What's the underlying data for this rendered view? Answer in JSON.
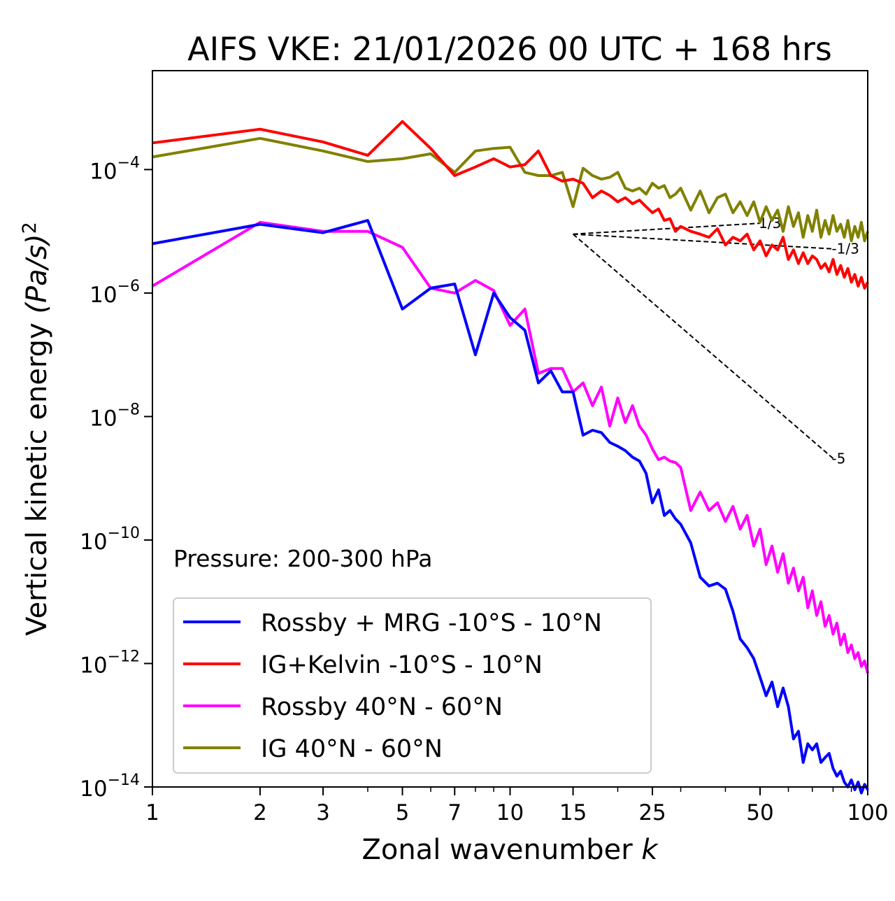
{
  "chart_data": {
    "type": "line",
    "title": "AIFS VKE: 21/01/2026 00 UTC + 168 hrs",
    "xlabel_text": "Zonal wavenumber",
    "xlabel_var": "k",
    "ylabel_text": "Vertical kinetic energy",
    "ylabel_unit": "(Pa/s)",
    "ylabel_power": "2",
    "xscale": "log",
    "yscale": "log",
    "xlim": [
      1,
      100
    ],
    "ylim": [
      1e-14,
      0.004
    ],
    "xticks": [
      1,
      2,
      3,
      5,
      7,
      10,
      15,
      25,
      50,
      100
    ],
    "xtick_labels": [
      "1",
      "2",
      "3",
      "5",
      "7",
      "10",
      "15",
      "25",
      "50",
      "100"
    ],
    "yticks": [
      -4,
      -6,
      -8,
      -10,
      -12,
      -14
    ],
    "ytick_base": "10",
    "ytick_exponents": [
      "−4",
      "−6",
      "−8",
      "−10",
      "−12",
      "−14"
    ],
    "annotation": "Pressure: 200-300 hPa",
    "legend_position": "lower-left",
    "series": [
      {
        "name": "Rossby + MRG -10°S - 10°N",
        "color": "#0000ff",
        "x": [
          1,
          2,
          3,
          4,
          5,
          6,
          7,
          8,
          9,
          10,
          11,
          12,
          13,
          14,
          15,
          16,
          17,
          18,
          19,
          20,
          21,
          22,
          23,
          24,
          25,
          26,
          27,
          28,
          29,
          30,
          32,
          34,
          36,
          38,
          40,
          42,
          44,
          46,
          48,
          50,
          52,
          54,
          56,
          58,
          60,
          62,
          64,
          66,
          68,
          70,
          72,
          74,
          76,
          78,
          80,
          82,
          84,
          86,
          88,
          90,
          92,
          94,
          96,
          98,
          100
        ],
        "y": [
          6.3e-06,
          1.3e-05,
          9.5e-06,
          1.5e-05,
          5.5e-07,
          1.2e-06,
          1.4e-06,
          1e-07,
          1e-06,
          4e-07,
          2.5e-07,
          3.5e-08,
          5.5e-08,
          2.5e-08,
          2.5e-08,
          5e-09,
          6e-09,
          5.5e-09,
          3.8e-09,
          3.3e-09,
          2.8e-09,
          2.2e-09,
          1.9e-09,
          1.2e-09,
          4e-10,
          6.5e-10,
          2.5e-10,
          3e-10,
          2.2e-10,
          1.8e-10,
          9e-11,
          2.5e-11,
          1.8e-11,
          2e-11,
          1.6e-11,
          7e-12,
          2.5e-12,
          1.8e-12,
          1.2e-12,
          6e-13,
          3e-13,
          5e-13,
          2e-13,
          4e-13,
          2e-13,
          6e-14,
          8e-14,
          2.5e-14,
          5e-14,
          4e-14,
          5e-14,
          2.5e-14,
          3e-14,
          3.5e-14,
          2e-14,
          1.5e-14,
          1.8e-14,
          1.2e-14,
          1e-14,
          1.3e-14,
          9e-15,
          1.2e-14,
          8e-15,
          1.1e-14,
          9e-15
        ]
      },
      {
        "name": "IG+Kelvin -10°S - 10°N",
        "color": "#ff0000",
        "x": [
          1,
          2,
          3,
          4,
          5,
          6,
          7,
          8,
          9,
          10,
          11,
          12,
          13,
          14,
          15,
          16,
          17,
          18,
          19,
          20,
          21,
          22,
          23,
          24,
          25,
          26,
          27,
          28,
          29,
          30,
          32,
          34,
          36,
          38,
          40,
          42,
          44,
          46,
          48,
          50,
          52,
          54,
          56,
          58,
          60,
          62,
          64,
          66,
          68,
          70,
          72,
          74,
          76,
          78,
          80,
          82,
          84,
          86,
          88,
          90,
          92,
          94,
          96,
          98,
          100
        ],
        "y": [
          0.00027,
          0.00045,
          0.00028,
          0.00017,
          0.0006,
          0.00022,
          8e-05,
          0.00011,
          0.00015,
          0.00011,
          0.00012,
          0.0002,
          8e-05,
          6.5e-05,
          7e-05,
          6e-05,
          3.5e-05,
          4.5e-05,
          3.8e-05,
          3e-05,
          3.5e-05,
          2.8e-05,
          3.2e-05,
          2.5e-05,
          2e-05,
          2.3e-05,
          1.5e-05,
          1.6e-05,
          1e-05,
          1.2e-05,
          1e-05,
          9e-06,
          8e-06,
          1.1e-05,
          6e-06,
          8e-06,
          7e-06,
          9e-06,
          5e-06,
          7e-06,
          4e-06,
          6e-06,
          5e-06,
          8e-06,
          3.5e-06,
          5e-06,
          3e-06,
          4.5e-06,
          3e-06,
          4e-06,
          3.5e-06,
          2.5e-06,
          3e-06,
          2.2e-06,
          3.5e-06,
          2e-06,
          2.8e-06,
          1.8e-06,
          2.5e-06,
          1.5e-06,
          2e-06,
          1.3e-06,
          1.8e-06,
          1.2e-06,
          1.5e-06
        ]
      },
      {
        "name": "Rossby 40°N - 60°N",
        "color": "#ff00ff",
        "x": [
          1,
          2,
          3,
          4,
          5,
          6,
          7,
          8,
          9,
          10,
          11,
          12,
          13,
          14,
          15,
          16,
          17,
          18,
          19,
          20,
          21,
          22,
          23,
          24,
          25,
          26,
          27,
          28,
          29,
          30,
          32,
          34,
          36,
          38,
          40,
          42,
          44,
          46,
          48,
          50,
          52,
          54,
          56,
          58,
          60,
          62,
          64,
          66,
          68,
          70,
          72,
          74,
          76,
          78,
          80,
          82,
          84,
          86,
          88,
          90,
          92,
          94,
          96,
          98,
          100
        ],
        "y": [
          1.3e-06,
          1.4e-05,
          1e-05,
          1e-05,
          5.5e-06,
          1.2e-06,
          1e-06,
          1.6e-06,
          1.1e-06,
          3e-07,
          5.5e-07,
          5e-08,
          6e-08,
          6e-08,
          2.5e-08,
          3.5e-08,
          1.5e-08,
          3e-08,
          7e-09,
          2e-08,
          8e-09,
          1.5e-08,
          7e-09,
          5e-09,
          3e-09,
          2e-09,
          2.2e-09,
          1.9e-09,
          1.8e-09,
          1.5e-09,
          3e-10,
          6e-10,
          3e-10,
          4e-10,
          2e-10,
          3.5e-10,
          1.5e-10,
          2.5e-10,
          8e-11,
          1.5e-10,
          4e-11,
          8e-11,
          3e-11,
          6e-11,
          2e-11,
          3.5e-11,
          1.5e-11,
          2.5e-11,
          8e-12,
          1.5e-11,
          6e-12,
          1e-11,
          4e-12,
          6e-12,
          3e-12,
          4.5e-12,
          2e-12,
          3e-12,
          1.5e-12,
          2e-12,
          1.2e-12,
          1.5e-12,
          9e-13,
          1.1e-12,
          7e-13
        ]
      },
      {
        "name": "IG 40°N - 60°N",
        "color": "#808000",
        "x": [
          1,
          2,
          3,
          4,
          5,
          6,
          7,
          8,
          9,
          10,
          11,
          12,
          13,
          14,
          15,
          16,
          17,
          18,
          19,
          20,
          21,
          22,
          23,
          24,
          25,
          26,
          27,
          28,
          29,
          30,
          32,
          34,
          36,
          38,
          40,
          42,
          44,
          46,
          48,
          50,
          52,
          54,
          56,
          58,
          60,
          62,
          64,
          66,
          68,
          70,
          72,
          74,
          76,
          78,
          80,
          82,
          84,
          86,
          88,
          90,
          92,
          94,
          96,
          98,
          100
        ],
        "y": [
          0.00016,
          0.00032,
          0.0002,
          0.000135,
          0.00015,
          0.00018,
          9e-05,
          0.0002,
          0.00022,
          0.00023,
          9e-05,
          8e-05,
          8e-05,
          9e-05,
          2.5e-05,
          0.000105,
          8e-05,
          7e-05,
          7.5e-05,
          9e-05,
          5e-05,
          4.5e-05,
          5e-05,
          4e-05,
          6e-05,
          5e-05,
          5.5e-05,
          3.5e-05,
          4e-05,
          5e-05,
          2.2e-05,
          4.5e-05,
          2e-05,
          3.5e-05,
          4e-05,
          2e-05,
          3e-05,
          1.8e-05,
          3e-05,
          1.4e-05,
          2.5e-05,
          1.5e-05,
          2.2e-05,
          1e-05,
          2.5e-05,
          1.2e-05,
          2e-05,
          8e-06,
          1.8e-05,
          1e-05,
          2.2e-05,
          8e-06,
          1.5e-05,
          9e-06,
          1.8e-05,
          1e-05,
          1.3e-05,
          8e-06,
          1.5e-05,
          7e-06,
          1.2e-05,
          8e-06,
          1.4e-05,
          7e-06,
          1e-05
        ]
      }
    ],
    "reference_slopes": [
      {
        "label": "1/3",
        "x": [
          15,
          50
        ],
        "y": [
          9e-06,
          1.35e-05
        ]
      },
      {
        "label": "-1/3",
        "x": [
          15,
          80
        ],
        "y": [
          9e-06,
          5.2e-06
        ]
      },
      {
        "label": "-5",
        "x": [
          15,
          80
        ],
        "y": [
          9e-06,
          2.1e-09
        ]
      }
    ]
  }
}
